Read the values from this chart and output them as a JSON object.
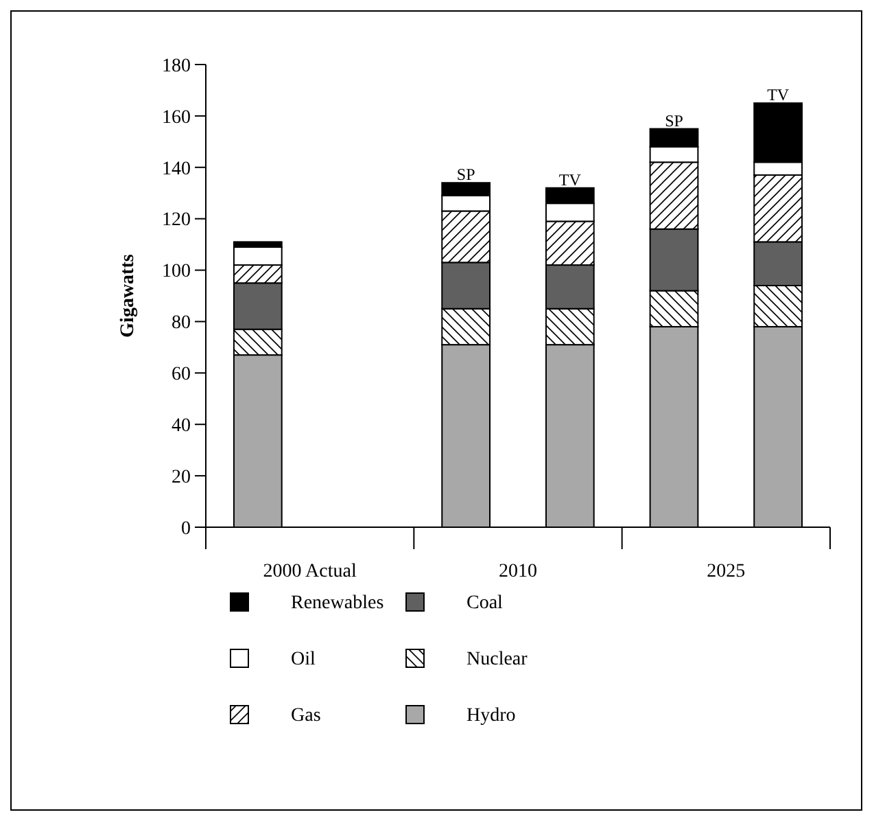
{
  "chart_data": {
    "type": "bar",
    "stacked": true,
    "ylabel": "Gigawatts",
    "categories": [
      "2000 Actual",
      null,
      "2010",
      null,
      "2025",
      null
    ],
    "series": [
      {
        "name": "Hydro",
        "color": "#a8a8a8",
        "values": [
          67,
          null,
          71,
          71,
          78,
          78
        ]
      },
      {
        "name": "Nuclear",
        "color": "#000000",
        "values": [
          10,
          null,
          14,
          14,
          14,
          16
        ]
      },
      {
        "name": "Coal",
        "color": "#606060",
        "values": [
          18,
          null,
          18,
          17,
          24,
          17
        ]
      },
      {
        "name": "Gas",
        "color": "#000000",
        "values": [
          7,
          null,
          20,
          17,
          26,
          26
        ]
      },
      {
        "name": "Oil",
        "color": "#ffffff",
        "values": [
          7,
          null,
          6,
          7,
          6,
          5
        ]
      },
      {
        "name": "Renewables",
        "color": "#000000",
        "values": [
          2,
          null,
          5,
          6,
          7,
          23
        ]
      }
    ],
    "ylim": [
      0,
      180
    ],
    "yticks": [
      0,
      20,
      40,
      60,
      80,
      100,
      120,
      140,
      160,
      180
    ],
    "grid": false,
    "legend": "bottom",
    "annotations": [
      "SP",
      "TV",
      "SP",
      "TV"
    ]
  }
}
